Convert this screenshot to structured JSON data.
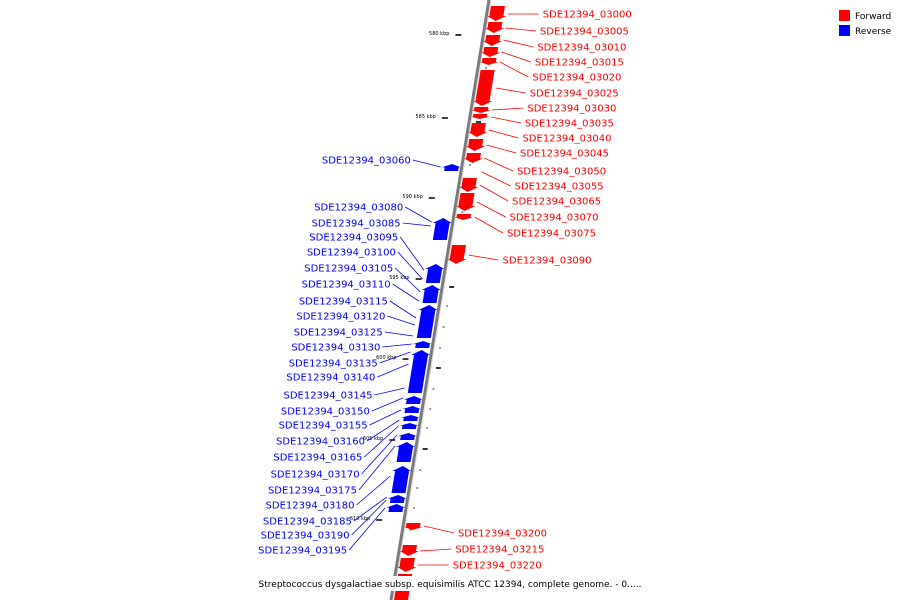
{
  "legend": {
    "forward_label": "Forward",
    "reverse_label": "Reverse",
    "forward_color": "#ff0000",
    "reverse_color": "#0000ff"
  },
  "scale_labels": [
    "580 kbp",
    "585 kbp",
    "590 kbp",
    "595 kbp",
    "600 kbp",
    "605 kbp",
    "610 kbp"
  ],
  "forward_genes": [
    "SDE12394_03000",
    "SDE12394_03005",
    "SDE12394_03010",
    "SDE12394_03015",
    "SDE12394_03020",
    "SDE12394_03025",
    "SDE12394_03030",
    "SDE12394_03035",
    "SDE12394_03040",
    "SDE12394_03045",
    "SDE12394_03050",
    "SDE12394_03055",
    "SDE12394_03065",
    "SDE12394_03070",
    "SDE12394_03075",
    "SDE12394_03090",
    "SDE12394_03200",
    "SDE12394_03215",
    "SDE12394_03220"
  ],
  "reverse_genes": [
    "SDE12394_03060",
    "SDE12394_03080",
    "SDE12394_03085",
    "SDE12394_03095",
    "SDE12394_03100",
    "SDE12394_03105",
    "SDE12394_03110",
    "SDE12394_03115",
    "SDE12394_03120",
    "SDE12394_03125",
    "SDE12394_03130",
    "SDE12394_03135",
    "SDE12394_03140",
    "SDE12394_03145",
    "SDE12394_03150",
    "SDE12394_03155",
    "SDE12394_03160",
    "SDE12394_03165",
    "SDE12394_03170",
    "SDE12394_03175",
    "SDE12394_03180",
    "SDE12394_03185",
    "SDE12394_03190",
    "SDE12394_03195"
  ],
  "caption": "Streptococcus dysgalactiae subsp. equisimilis ATCC 12394, complete genome. - 0....."
}
